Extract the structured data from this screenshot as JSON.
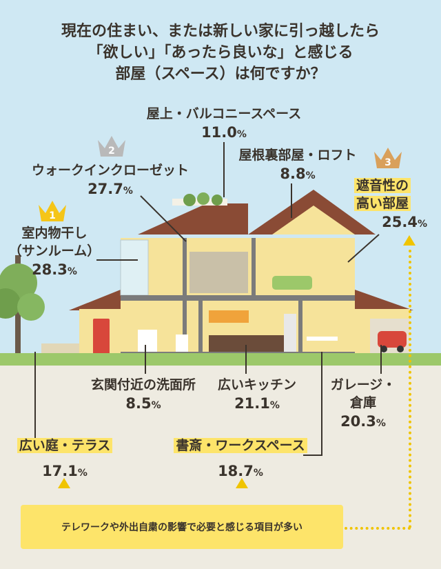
{
  "title": {
    "line1": "現在の住まい、または新しい家に引っ越したら",
    "line2": "「欲しい」「あったら良いな」と感じる",
    "line3": "部屋（スペース）は何ですか？"
  },
  "items": {
    "rooftop": {
      "name": "屋上・バルコニースペース",
      "value": "11.0",
      "unit": "%"
    },
    "attic": {
      "name": "屋根裏部屋・ロフト",
      "value": "8.8",
      "unit": "%"
    },
    "walkin": {
      "name": "ウォークインクローゼット",
      "value": "27.7",
      "unit": "%",
      "rank": "2"
    },
    "soundproof": {
      "name1": "遮音性の",
      "name2": "高い部屋",
      "value": "25.4",
      "unit": "%",
      "rank": "3"
    },
    "sunroom": {
      "name1": "室内物干し",
      "name2": "（サンルーム）",
      "value": "28.3",
      "unit": "%",
      "rank": "1"
    },
    "washroom": {
      "name": "玄関付近の洗面所",
      "value": "8.5",
      "unit": "%"
    },
    "kitchen": {
      "name": "広いキッチン",
      "value": "21.1",
      "unit": "%"
    },
    "garage": {
      "name1": "ガレージ・",
      "name2": "倉庫",
      "value": "20.3",
      "unit": "%"
    },
    "garden": {
      "name": "広い庭・テラス",
      "value": "17.1",
      "unit": "%"
    },
    "study": {
      "name": "書斎・ワークスペース",
      "value": "18.7",
      "unit": "%"
    }
  },
  "note": "テレワークや外出自粛の影響で必要と感じる項目が多い",
  "colors": {
    "highlight": "#fde46a",
    "gold": "#f5c518",
    "silver": "#b9b9b9",
    "bronze": "#d9a05b",
    "roof": "#8a4b35",
    "wall": "#f6e39a",
    "sky": "#cfe8f3"
  }
}
